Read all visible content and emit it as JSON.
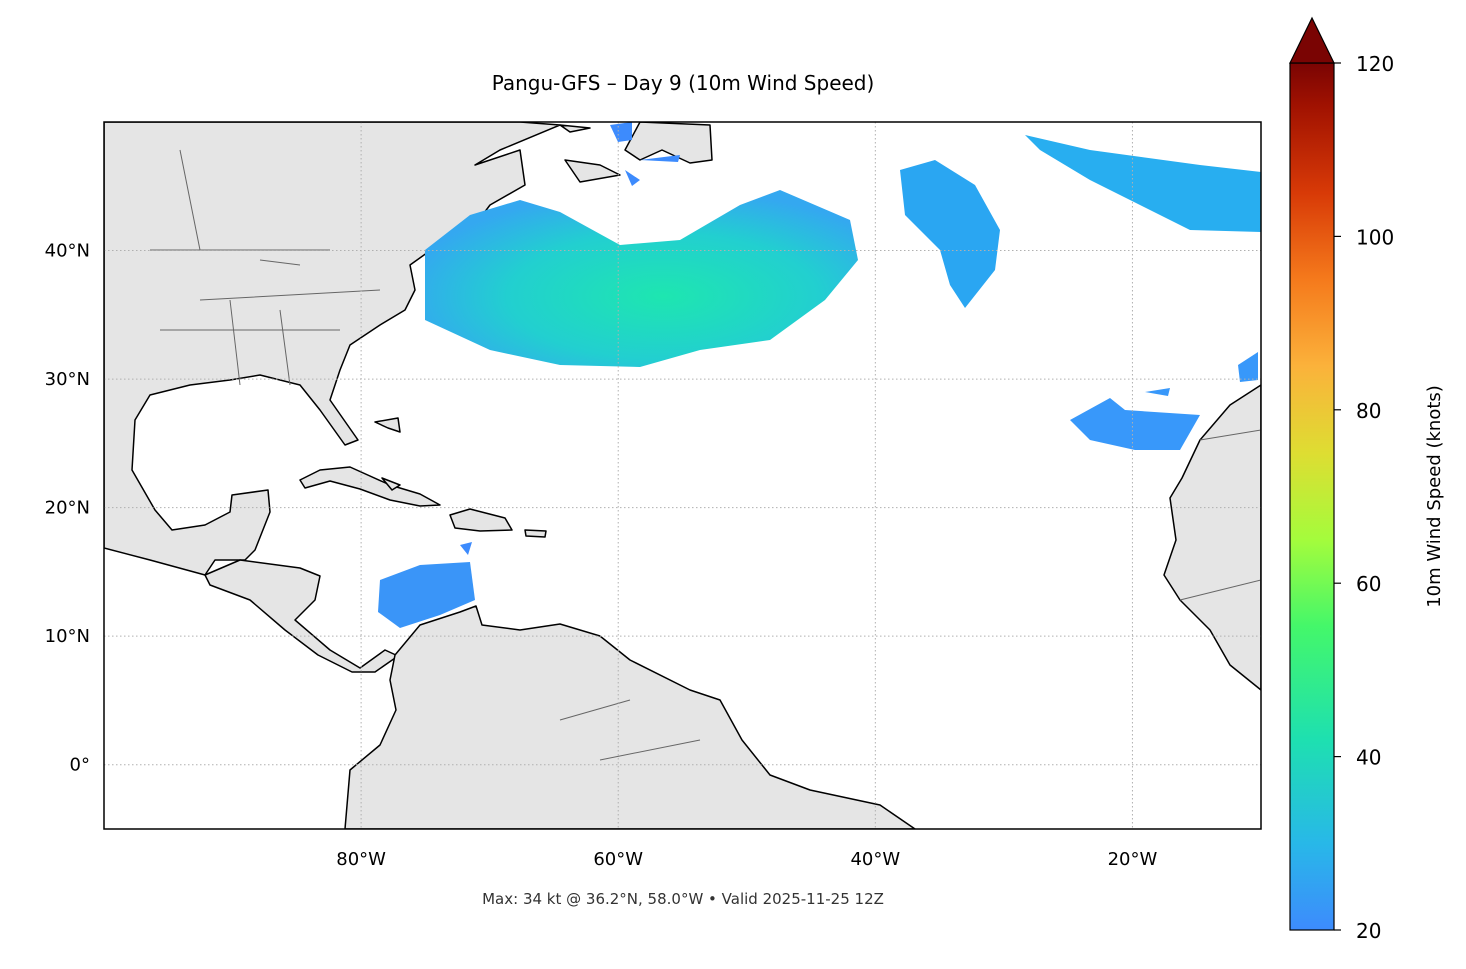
{
  "chart_data": {
    "type": "map",
    "title": "Pangu-GFS – Day 9 (10m Wind Speed)",
    "annotation": "Max: 34 kt @ 36.2°N, 58.0°W • Valid 2025-11-25 12Z",
    "xlim": [
      -100,
      -10
    ],
    "ylim": [
      -5,
      50
    ],
    "xticks": [
      {
        "value": -80,
        "label": "80°W"
      },
      {
        "value": -60,
        "label": "60°W"
      },
      {
        "value": -40,
        "label": "40°W"
      },
      {
        "value": -20,
        "label": "20°W"
      }
    ],
    "yticks": [
      {
        "value": 0,
        "label": "0°"
      },
      {
        "value": 10,
        "label": "10°N"
      },
      {
        "value": 20,
        "label": "20°N"
      },
      {
        "value": 30,
        "label": "30°N"
      },
      {
        "value": 40,
        "label": "40°N"
      }
    ],
    "grid": true,
    "colorbar": {
      "label": "10m Wind Speed (knots)",
      "lim": [
        20,
        120
      ],
      "ticks": [
        20,
        40,
        60,
        80,
        100,
        120
      ],
      "extend": "max"
    }
  }
}
